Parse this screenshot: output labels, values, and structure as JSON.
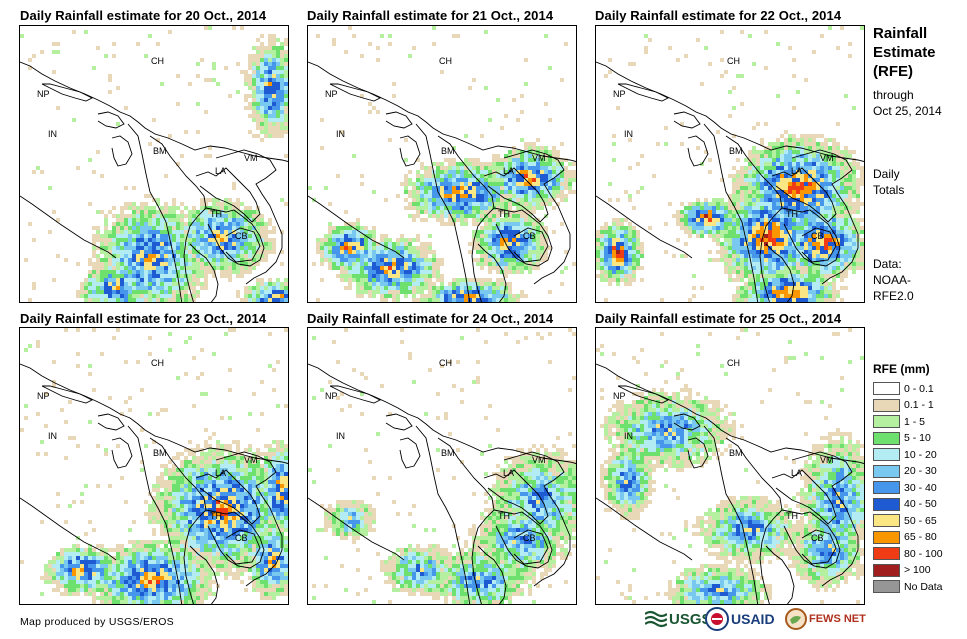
{
  "panels": [
    {
      "title": "Daily Rainfall estimate for 20 Oct., 2014",
      "day": 0
    },
    {
      "title": "Daily Rainfall estimate for 21 Oct., 2014",
      "day": 1
    },
    {
      "title": "Daily Rainfall estimate for 22 Oct., 2014",
      "day": 2
    },
    {
      "title": "Daily Rainfall estimate for 23 Oct., 2014",
      "day": 3
    },
    {
      "title": "Daily Rainfall estimate for 24 Oct., 2014",
      "day": 4
    },
    {
      "title": "Daily Rainfall estimate for 25 Oct., 2014",
      "day": 5
    }
  ],
  "country_labels": {
    "ch": "CH",
    "np": "NP",
    "in": "IN",
    "bm": "BM",
    "la": "LA",
    "vm": "VM",
    "th": "TH",
    "cb": "CB"
  },
  "sidebar": {
    "title_line1": "Rainfall",
    "title_line2": "Estimate",
    "title_line3": "(RFE)",
    "through": "through",
    "date": "Oct 25, 2014",
    "daily": "Daily",
    "totals": "Totals",
    "data_label": "Data:",
    "data_source1": "NOAA-",
    "data_source2": "RFE2.0"
  },
  "legend": {
    "title": "RFE (mm)",
    "items": [
      {
        "label": "0 - 0.1",
        "color": "#ffffff"
      },
      {
        "label": "0.1 - 1",
        "color": "#e8d8b8"
      },
      {
        "label": "1 - 5",
        "color": "#b4f0a0"
      },
      {
        "label": "5 - 10",
        "color": "#6ee06e"
      },
      {
        "label": "10 - 20",
        "color": "#b4ecf4"
      },
      {
        "label": "20 - 30",
        "color": "#78c8f0"
      },
      {
        "label": "30 - 40",
        "color": "#4696ec"
      },
      {
        "label": "40 - 50",
        "color": "#1e5ad2"
      },
      {
        "label": "50 - 65",
        "color": "#fae682"
      },
      {
        "label": "65 - 80",
        "color": "#fa9600"
      },
      {
        "label": "80 - 100",
        "color": "#f03c14"
      },
      {
        "label": "> 100",
        "color": "#a01e1e"
      },
      {
        "label": "No Data",
        "color": "#969696"
      }
    ]
  },
  "credit": "Map produced by USGS/EROS",
  "logos": {
    "usgs": "USGS",
    "usaid": "USAID",
    "fewsnet": "FEWS NET"
  },
  "rain_intensity": [
    0.9,
    1.0,
    1.1,
    1.0,
    0.75,
    0.8
  ]
}
